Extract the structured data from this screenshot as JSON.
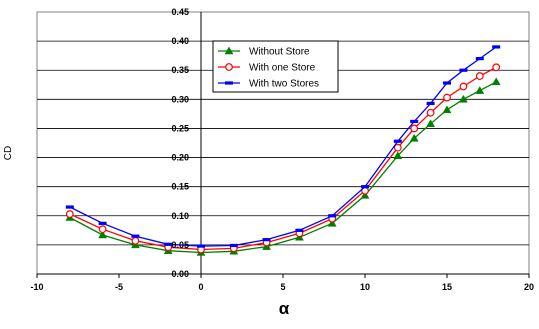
{
  "chart_data": {
    "type": "line",
    "xlabel": "α",
    "ylabel": "CD",
    "xlim": [
      -10,
      20
    ],
    "ylim": [
      0,
      0.45
    ],
    "x_ticks": [
      "-10",
      "-5",
      "0",
      "5",
      "10",
      "15",
      "20"
    ],
    "y_ticks": [
      "0.00",
      "0.05",
      "0.10",
      "0.15",
      "0.20",
      "0.25",
      "0.30",
      "0.35",
      "0.40",
      "0.45"
    ],
    "grid": "horizontal",
    "legend_position": "upper-left inside plot",
    "series": [
      {
        "name": "Without  Store",
        "color": "#008000",
        "marker": "triangle",
        "x": [
          -8,
          -6,
          -4,
          -2,
          0,
          2,
          4,
          6,
          8,
          10,
          12,
          13,
          14,
          15,
          16,
          17,
          18
        ],
        "y": [
          0.097,
          0.067,
          0.05,
          0.04,
          0.037,
          0.039,
          0.047,
          0.063,
          0.087,
          0.135,
          0.203,
          0.233,
          0.258,
          0.282,
          0.3,
          0.315,
          0.33
        ]
      },
      {
        "name": "With one  Store",
        "color": "#ff0000",
        "marker": "circle",
        "x": [
          -8,
          -6,
          -4,
          -2,
          0,
          2,
          4,
          6,
          8,
          10,
          12,
          13,
          14,
          15,
          16,
          17,
          18
        ],
        "y": [
          0.103,
          0.077,
          0.057,
          0.046,
          0.042,
          0.044,
          0.054,
          0.07,
          0.095,
          0.143,
          0.217,
          0.25,
          0.277,
          0.303,
          0.322,
          0.34,
          0.355
        ]
      },
      {
        "name": "With two  Stores",
        "color": "#0000ff",
        "marker": "dash",
        "x": [
          -8,
          -6,
          -4,
          -2,
          0,
          2,
          4,
          6,
          8,
          10,
          12,
          13,
          14,
          15,
          16,
          17,
          18
        ],
        "y": [
          0.115,
          0.087,
          0.065,
          0.051,
          0.048,
          0.049,
          0.059,
          0.075,
          0.1,
          0.15,
          0.228,
          0.262,
          0.293,
          0.328,
          0.35,
          0.37,
          0.39
        ]
      }
    ]
  }
}
